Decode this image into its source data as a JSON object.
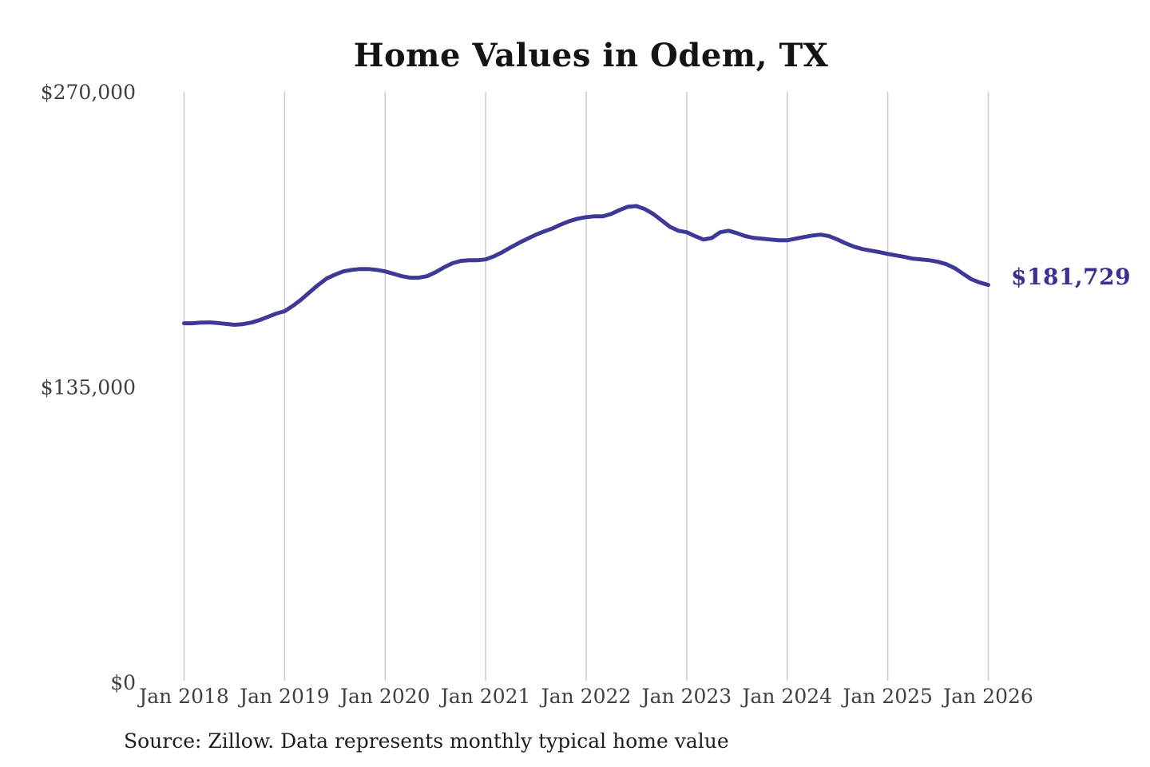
{
  "title": "Home Values in Odem, TX",
  "source_note": "Source: Zillow. Data represents monthly typical home value",
  "chart_data": {
    "type": "line",
    "title": "Home Values in Odem, TX",
    "xlabel": "",
    "ylabel": "",
    "ylim": [
      0,
      270000
    ],
    "grid": "vertical-only",
    "grid_color": "#cccccc",
    "tick_color": "#3f3f3f",
    "accent_color": "#39318f",
    "x_tick_labels": [
      "Jan 2018",
      "Jan 2019",
      "Jan 2020",
      "Jan 2021",
      "Jan 2022",
      "Jan 2023",
      "Jan 2024",
      "Jan 2025",
      "Jan 2026"
    ],
    "y_ticks": [
      {
        "label": "$0",
        "value": 0
      },
      {
        "label": "$135,000",
        "value": 135000
      },
      {
        "label": "$270,000",
        "value": 270000
      }
    ],
    "end_label": "$181,729",
    "last_value": 181729,
    "series": [
      {
        "name": "Monthly typical home value",
        "color": "#3e3896",
        "start_month": "2018-01",
        "end_month": "2026-01",
        "monthly_values": [
          164200,
          164200,
          164500,
          164600,
          164300,
          163900,
          163500,
          163800,
          164500,
          165600,
          167100,
          168600,
          169700,
          172200,
          175100,
          178400,
          181700,
          184600,
          186400,
          187900,
          188600,
          189000,
          189000,
          188600,
          187900,
          186800,
          185700,
          185000,
          185000,
          185700,
          187500,
          189700,
          191600,
          192700,
          193000,
          193000,
          193400,
          194800,
          196700,
          198900,
          201000,
          202900,
          204700,
          206200,
          207600,
          209400,
          210900,
          212000,
          212700,
          213100,
          213100,
          214200,
          216000,
          217500,
          217800,
          216400,
          214200,
          211300,
          208300,
          206500,
          205800,
          204000,
          202500,
          203200,
          205800,
          206500,
          205400,
          204000,
          203200,
          202900,
          202500,
          202100,
          202100,
          202900,
          203600,
          204300,
          204700,
          204000,
          202500,
          200700,
          199200,
          198100,
          197400,
          196700,
          195900,
          195200,
          194500,
          193700,
          193400,
          193000,
          192300,
          191200,
          189400,
          186800,
          184300,
          182800,
          181729
        ]
      }
    ]
  }
}
